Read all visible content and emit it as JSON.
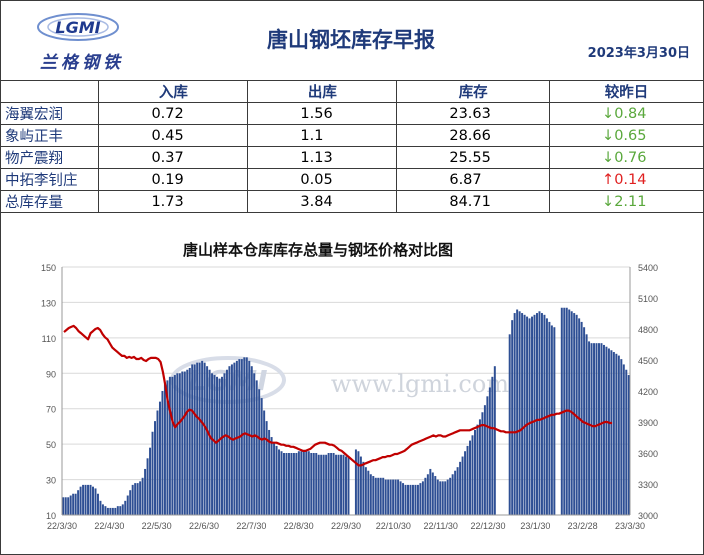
{
  "header": {
    "title": "唐山钢坯库存早报",
    "date": "2023年3月30日",
    "logo_mark": "LGMI",
    "logo_text": "兰格钢铁"
  },
  "table": {
    "columns": [
      "",
      "入库",
      "出库",
      "库存",
      "较昨日"
    ],
    "rows": [
      {
        "name": "海翼宏润",
        "in": "0.72",
        "out": "1.56",
        "stock": "23.63",
        "arrow": "↓",
        "change": "0.84",
        "dir": "down"
      },
      {
        "name": "象屿正丰",
        "in": "0.45",
        "out": "1.1",
        "stock": "28.66",
        "arrow": "↓",
        "change": "0.65",
        "dir": "down"
      },
      {
        "name": "物产震翔",
        "in": "0.37",
        "out": "1.13",
        "stock": "25.55",
        "arrow": "↓",
        "change": "0.76",
        "dir": "down"
      },
      {
        "name": "中拓李钊庄",
        "in": "0.19",
        "out": "0.05",
        "stock": "6.87",
        "arrow": "↑",
        "change": "0.14",
        "dir": "up"
      },
      {
        "name": "总库存量",
        "in": "1.73",
        "out": "3.84",
        "stock": "84.71",
        "arrow": "↓",
        "change": "2.11",
        "dir": "down"
      }
    ]
  },
  "chart_data": {
    "type": "bar",
    "title": "唐山样本仓库库存总量与钢坯价格对比图",
    "watermark": "www.lgmi.com",
    "x_ticks": [
      "22/3/30",
      "22/4/30",
      "22/5/30",
      "22/6/30",
      "22/7/30",
      "22/8/30",
      "22/9/30",
      "22/10/30",
      "22/11/30",
      "22/12/30",
      "23/1/30",
      "23/2/28",
      "23/3/30"
    ],
    "y_left": {
      "min": 10,
      "max": 150,
      "ticks": [
        10,
        30,
        50,
        70,
        90,
        110,
        130,
        150
      ]
    },
    "y_right": {
      "min": 3000,
      "max": 5400,
      "ticks": [
        3000,
        3300,
        3600,
        3900,
        4200,
        4500,
        4800,
        5100,
        5400
      ]
    },
    "series": [
      {
        "type": "bar",
        "axis": "left",
        "color": "#2e4f94",
        "values": [
          20,
          20,
          20,
          21,
          22,
          22,
          24,
          26,
          27,
          27,
          27,
          27,
          26,
          25,
          22,
          18,
          16,
          15,
          14,
          14,
          14,
          14,
          15,
          15,
          16,
          18,
          21,
          24,
          27,
          28,
          28,
          29,
          31,
          36,
          42,
          48,
          57,
          63,
          69,
          74,
          80,
          84,
          86,
          88,
          88,
          89,
          90,
          90,
          91,
          91,
          92,
          93,
          95,
          95,
          96,
          96,
          97,
          96,
          94,
          92,
          90,
          89,
          88,
          87,
          88,
          90,
          92,
          94,
          95,
          96,
          97,
          98,
          98,
          99,
          99,
          97,
          94,
          90,
          86,
          81,
          76,
          69,
          63,
          58,
          54,
          51,
          49,
          47,
          46,
          45,
          45,
          45,
          45,
          45,
          45,
          46,
          46,
          46,
          46,
          46,
          45,
          45,
          45,
          44,
          44,
          44,
          44,
          45,
          45,
          45,
          44,
          44,
          44,
          44,
          43,
          43,
          0,
          0,
          47,
          46,
          43,
          40,
          37,
          35,
          33,
          32,
          31,
          31,
          31,
          31,
          30,
          30,
          30,
          30,
          30,
          30,
          29,
          28,
          27,
          27,
          27,
          27,
          27,
          27,
          28,
          29,
          31,
          33,
          36,
          34,
          32,
          30,
          29,
          29,
          29,
          30,
          31,
          33,
          35,
          37,
          40,
          43,
          46,
          49,
          52,
          55,
          58,
          61,
          64,
          68,
          72,
          77,
          82,
          88,
          94,
          0,
          0,
          0,
          0,
          0,
          112,
          120,
          124,
          126,
          125,
          124,
          123,
          122,
          121,
          122,
          123,
          124,
          125,
          124,
          123,
          121,
          119,
          117,
          116,
          0,
          0,
          127,
          127,
          127,
          126,
          125,
          124,
          123,
          121,
          119,
          116,
          112,
          108,
          107,
          107,
          107,
          107,
          107,
          106,
          105,
          104,
          103,
          102,
          101,
          100,
          98,
          95,
          92,
          89
        ]
      },
      {
        "type": "line",
        "axis": "right",
        "color": "#c00000",
        "values": [
          4770,
          4790,
          4810,
          4820,
          4830,
          4810,
          4780,
          4760,
          4740,
          4720,
          4700,
          4760,
          4780,
          4800,
          4810,
          4790,
          4750,
          4720,
          4700,
          4660,
          4620,
          4600,
          4580,
          4560,
          4540,
          4540,
          4520,
          4530,
          4520,
          4530,
          4510,
          4510,
          4520,
          4500,
          4490,
          4510,
          4520,
          4520,
          4520,
          4510,
          4480,
          4380,
          4250,
          4100,
          4000,
          3900,
          3850,
          3880,
          3900,
          3930,
          3960,
          4000,
          4020,
          4010,
          3980,
          3950,
          3930,
          3900,
          3870,
          3830,
          3780,
          3740,
          3720,
          3700,
          3720,
          3740,
          3760,
          3770,
          3760,
          3740,
          3730,
          3740,
          3750,
          3760,
          3780,
          3790,
          3780,
          3770,
          3760,
          3770,
          3760,
          3740,
          3730,
          3740,
          3730,
          3710,
          3700,
          3700,
          3700,
          3690,
          3680,
          3680,
          3670,
          3670,
          3660,
          3660,
          3650,
          3640,
          3630,
          3620,
          3620,
          3630,
          3640,
          3660,
          3680,
          3690,
          3700,
          3700,
          3700,
          3690,
          3680,
          3680,
          3670,
          3650,
          3630,
          3620,
          3600,
          3580,
          3560,
          3540,
          3520,
          3500,
          3480,
          3480,
          3490,
          3500,
          3510,
          3520,
          3530,
          3530,
          3540,
          3550,
          3560,
          3560,
          3570,
          3570,
          3580,
          3590,
          3590,
          3600,
          3610,
          3620,
          3640,
          3660,
          3680,
          3690,
          3700,
          3710,
          3720,
          3730,
          3740,
          3750,
          3760,
          3770,
          3760,
          3770,
          3770,
          3760,
          3760,
          3770,
          3780,
          3790,
          3800,
          3810,
          3820,
          3820,
          3820,
          3820,
          3820,
          3830,
          3840,
          3850,
          3860,
          3870,
          3870,
          3860,
          3850,
          3840,
          3840,
          3830,
          3820,
          3810,
          3810,
          3800,
          3800,
          3800,
          3800,
          3800,
          3810,
          3820,
          3840,
          3860,
          3880,
          3890,
          3900,
          3910,
          3920,
          3920,
          3930,
          3940,
          3950,
          3960,
          3970,
          3970,
          3980,
          3980,
          3990,
          4000,
          4010,
          4010,
          4000,
          3980,
          3960,
          3940,
          3920,
          3900,
          3890,
          3880,
          3870,
          3860,
          3860,
          3870,
          3880,
          3890,
          3900,
          3900,
          3890,
          3890
        ]
      }
    ]
  }
}
